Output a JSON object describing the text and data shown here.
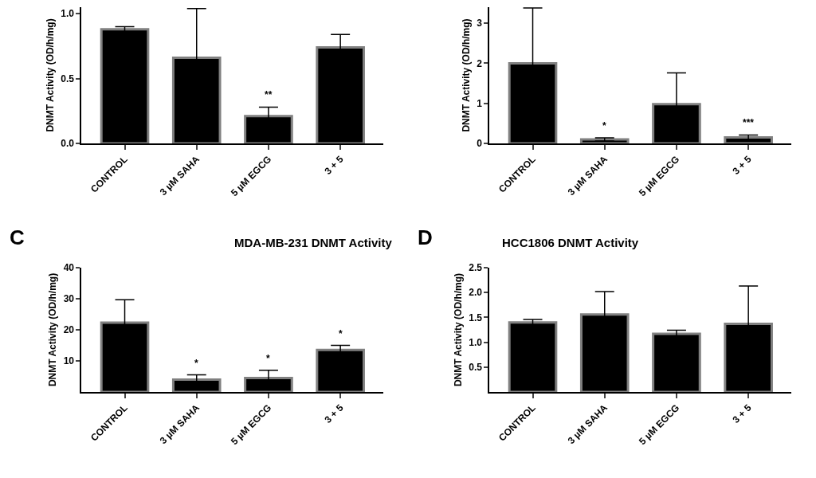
{
  "chart_data": [
    {
      "type": "bar",
      "ylabel": "DNMT Activity (OD/h/mg)",
      "categories": [
        "CONTROL",
        "3 µM SAHA",
        "5 µM EGCG",
        "3 + 5"
      ],
      "values": [
        0.88,
        0.66,
        0.21,
        0.74
      ],
      "errors": [
        0.02,
        0.38,
        0.07,
        0.1
      ],
      "color": "#000000",
      "ylim": [
        0,
        1.05
      ],
      "yticks": [
        {
          "value": 0,
          "label": "0.0"
        },
        0.5,
        {
          "value": 1,
          "label": "1.0"
        }
      ],
      "grid": false,
      "annotations": [
        {
          "text": "**",
          "x": "5 µM EGCG",
          "y": 0.28
        }
      ]
    },
    {
      "type": "bar",
      "ylabel": "DNMT Activity (OD/h/mg)",
      "categories": [
        "CONTROL",
        "3 µM SAHA",
        "5 µM EGCG",
        "3 + 5"
      ],
      "values": [
        2.0,
        0.1,
        0.98,
        0.15
      ],
      "errors": [
        1.38,
        0.04,
        0.78,
        0.06
      ],
      "color": "#000000",
      "ylim": [
        0,
        3.4
      ],
      "yticks": [
        0,
        1,
        2,
        3
      ],
      "grid": false,
      "annotations": [
        {
          "text": "*",
          "x": "3 µM SAHA",
          "y": 0.14
        },
        {
          "text": "***",
          "x": "3 + 5",
          "y": 0.21
        }
      ]
    },
    {
      "type": "bar",
      "title": "MDA-MB-231 DNMT Activity",
      "ylabel": "DNMT Activity (OD/h/mg)",
      "categories": [
        "CONTROL",
        "3 µM SAHA",
        "5 µM EGCG",
        "3 + 5"
      ],
      "values": [
        22.3,
        4.0,
        4.5,
        13.5
      ],
      "errors": [
        7.4,
        1.5,
        2.5,
        1.5
      ],
      "color": "#000000",
      "ylim": [
        0,
        40
      ],
      "yticks": [
        10,
        20,
        30,
        40
      ],
      "grid": false,
      "annotations": [
        "C",
        {
          "text": "*",
          "x": "3 µM SAHA",
          "y": 5.5
        },
        {
          "text": "*",
          "x": "5 µM EGCG",
          "y": 7.0
        },
        {
          "text": "*",
          "x": "3 + 5",
          "y": 15.0
        }
      ]
    },
    {
      "type": "bar",
      "title": "HCC1806 DNMT Activity",
      "ylabel": "DNMT Activity (OD/h/mg)",
      "categories": [
        "CONTROL",
        "3 µM SAHA",
        "5 µM EGCG",
        "3 + 5"
      ],
      "values": [
        1.4,
        1.56,
        1.17,
        1.37
      ],
      "errors": [
        0.06,
        0.46,
        0.07,
        0.76
      ],
      "color": "#000000",
      "ylim": [
        0,
        2.5
      ],
      "yticks": [
        0.5,
        {
          "value": 1,
          "label": "1.0"
        },
        1.5,
        {
          "value": 2,
          "label": "2.0"
        },
        2.5
      ],
      "grid": false,
      "annotations": [
        "D"
      ]
    }
  ]
}
